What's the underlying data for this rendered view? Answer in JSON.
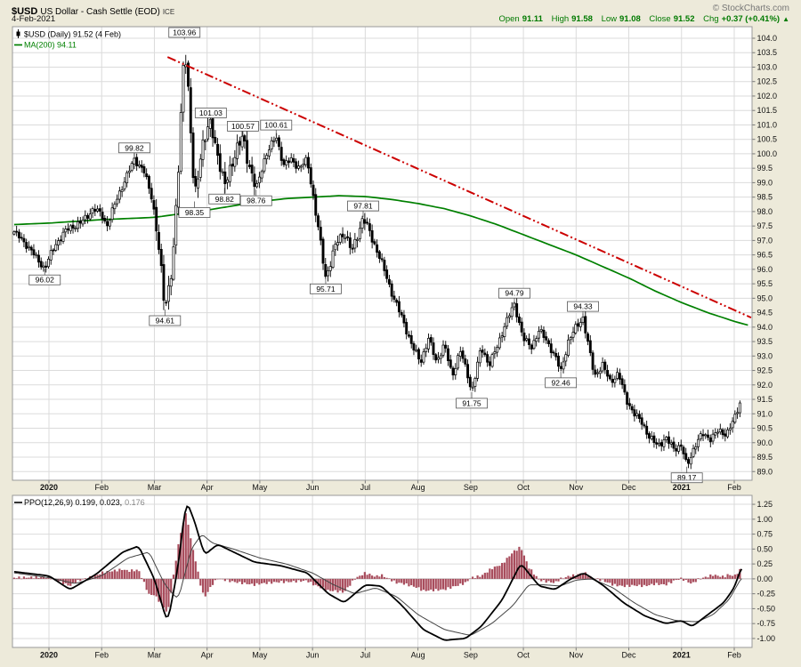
{
  "header": {
    "symbol": "$USD",
    "title": "US Dollar - Cash Settle (EOD)",
    "exchange": "ICE",
    "credit": "© StockCharts.com",
    "date": "4-Feb-2021",
    "quote": {
      "open_label": "Open",
      "open": "91.11",
      "high_label": "High",
      "high": "91.58",
      "low_label": "Low",
      "low": "91.08",
      "close_label": "Close",
      "close": "91.52",
      "chg_label": "Chg",
      "chg": "+0.37 (+0.41%)",
      "direction": "▲"
    },
    "up_color": "#007A00"
  },
  "main_panel": {
    "legend_symbol": "$USD (Daily) 91.52 (4 Feb)",
    "legend_ma": "MA(200) 94.11"
  },
  "ppo_panel": {
    "legend": "PPO(12,26,9) 0.199, 0.023,",
    "legend_hist": "0.176"
  },
  "chart_data": {
    "type": "candlestick",
    "title": "$USD US Dollar - Cash Settle (EOD) ICE",
    "timeframe": "Daily",
    "last_close": 91.52,
    "x_axis": {
      "unit": "months, 0 = Jan 2020 tick",
      "tick_labels": [
        "2020",
        "Feb",
        "Mar",
        "Apr",
        "May",
        "Jun",
        "Jul",
        "Aug",
        "Sep",
        "Oct",
        "Nov",
        "Dec",
        "2021",
        "Feb"
      ],
      "range": [
        -0.66,
        13.34
      ]
    },
    "price_axis": {
      "min": 89.0,
      "max": 104.0,
      "step": 0.5,
      "tick_labels": [
        "104.0",
        "103.5",
        "103.0",
        "102.5",
        "102.0",
        "101.5",
        "101.0",
        "100.5",
        "100.0",
        "99.5",
        "99.0",
        "98.5",
        "98.0",
        "97.5",
        "97.0",
        "96.5",
        "96.0",
        "95.5",
        "95.0",
        "94.5",
        "94.0",
        "93.5",
        "93.0",
        "92.5",
        "92.0",
        "91.5",
        "91.0",
        "90.5",
        "90.0",
        "89.5",
        "89.0"
      ]
    },
    "price_anchors": [
      [
        -0.66,
        97.3
      ],
      [
        -0.4,
        96.8
      ],
      [
        -0.2,
        96.3
      ],
      [
        -0.08,
        96.02
      ],
      [
        0.1,
        96.8
      ],
      [
        0.35,
        97.4
      ],
      [
        0.6,
        97.6
      ],
      [
        0.85,
        98.1
      ],
      [
        1.0,
        97.9
      ],
      [
        1.1,
        97.5
      ],
      [
        1.3,
        98.5
      ],
      [
        1.62,
        99.82
      ],
      [
        1.8,
        99.4
      ],
      [
        1.95,
        98.5
      ],
      [
        2.05,
        97.3
      ],
      [
        2.2,
        94.61
      ],
      [
        2.35,
        96.3
      ],
      [
        2.45,
        99.2
      ],
      [
        2.57,
        103.96
      ],
      [
        2.65,
        102.0
      ],
      [
        2.76,
        98.35
      ],
      [
        2.9,
        100.3
      ],
      [
        3.07,
        101.03
      ],
      [
        3.2,
        100.0
      ],
      [
        3.33,
        98.82
      ],
      [
        3.5,
        99.9
      ],
      [
        3.68,
        100.57
      ],
      [
        3.8,
        99.6
      ],
      [
        3.93,
        98.76
      ],
      [
        4.1,
        99.9
      ],
      [
        4.31,
        100.61
      ],
      [
        4.45,
        99.6
      ],
      [
        4.6,
        99.8
      ],
      [
        4.75,
        99.5
      ],
      [
        4.9,
        99.8
      ],
      [
        5.05,
        98.1
      ],
      [
        5.25,
        95.71
      ],
      [
        5.45,
        96.9
      ],
      [
        5.6,
        97.3
      ],
      [
        5.75,
        96.6
      ],
      [
        5.96,
        97.81
      ],
      [
        6.1,
        97.2
      ],
      [
        6.3,
        96.3
      ],
      [
        6.5,
        95.2
      ],
      [
        6.7,
        94.3
      ],
      [
        6.9,
        93.3
      ],
      [
        7.05,
        92.8
      ],
      [
        7.2,
        93.6
      ],
      [
        7.35,
        92.8
      ],
      [
        7.5,
        93.4
      ],
      [
        7.65,
        92.3
      ],
      [
        7.8,
        93.2
      ],
      [
        7.95,
        92.3
      ],
      [
        8.02,
        91.75
      ],
      [
        8.2,
        93.3
      ],
      [
        8.35,
        92.7
      ],
      [
        8.5,
        93.3
      ],
      [
        8.65,
        94.1
      ],
      [
        8.83,
        94.79
      ],
      [
        9.0,
        93.6
      ],
      [
        9.15,
        93.3
      ],
      [
        9.3,
        93.9
      ],
      [
        9.45,
        93.5
      ],
      [
        9.6,
        93.0
      ],
      [
        9.71,
        92.46
      ],
      [
        9.85,
        93.5
      ],
      [
        10.0,
        94.0
      ],
      [
        10.13,
        94.33
      ],
      [
        10.25,
        93.2
      ],
      [
        10.35,
        92.3
      ],
      [
        10.5,
        92.7
      ],
      [
        10.65,
        92.1
      ],
      [
        10.8,
        92.4
      ],
      [
        10.95,
        91.5
      ],
      [
        11.1,
        91.0
      ],
      [
        11.25,
        90.7
      ],
      [
        11.4,
        90.15
      ],
      [
        11.55,
        89.9
      ],
      [
        11.7,
        90.15
      ],
      [
        11.85,
        89.8
      ],
      [
        12.0,
        89.9
      ],
      [
        12.1,
        89.17
      ],
      [
        12.25,
        89.9
      ],
      [
        12.4,
        90.3
      ],
      [
        12.55,
        90.15
      ],
      [
        12.7,
        90.4
      ],
      [
        12.85,
        90.3
      ],
      [
        13.0,
        90.8
      ],
      [
        13.13,
        91.52
      ]
    ],
    "ma200": {
      "label": "MA(200)",
      "last": 94.11,
      "color": "#008000",
      "anchors": [
        [
          -0.66,
          97.55
        ],
        [
          0,
          97.6
        ],
        [
          1,
          97.72
        ],
        [
          2,
          97.8
        ],
        [
          2.6,
          97.95
        ],
        [
          3,
          98.05
        ],
        [
          3.5,
          98.2
        ],
        [
          4,
          98.35
        ],
        [
          4.5,
          98.45
        ],
        [
          5,
          98.5
        ],
        [
          5.5,
          98.55
        ],
        [
          6,
          98.52
        ],
        [
          6.5,
          98.42
        ],
        [
          7,
          98.28
        ],
        [
          7.5,
          98.1
        ],
        [
          8,
          97.85
        ],
        [
          8.5,
          97.55
        ],
        [
          9,
          97.2
        ],
        [
          9.5,
          96.85
        ],
        [
          10,
          96.5
        ],
        [
          10.5,
          96.1
        ],
        [
          11,
          95.7
        ],
        [
          11.5,
          95.25
        ],
        [
          12,
          94.85
        ],
        [
          12.5,
          94.5
        ],
        [
          13,
          94.2
        ],
        [
          13.3,
          94.05
        ]
      ]
    },
    "trendline": {
      "color": "#CC0000",
      "style": "dash-dot",
      "from": [
        2.25,
        103.35
      ],
      "to": [
        13.32,
        94.33
      ]
    },
    "annotations": [
      {
        "label": "96.02",
        "m": -0.08,
        "price": 96.02,
        "side": "below"
      },
      {
        "label": "99.82",
        "m": 1.62,
        "price": 99.82,
        "side": "above"
      },
      {
        "label": "94.61",
        "m": 2.2,
        "price": 94.61,
        "side": "below"
      },
      {
        "label": "103.96",
        "m": 2.57,
        "price": 103.96,
        "side": "above"
      },
      {
        "label": "98.35",
        "m": 2.76,
        "price": 98.35,
        "side": "below"
      },
      {
        "label": "101.03",
        "m": 3.07,
        "price": 101.03,
        "side": "above"
      },
      {
        "label": "98.82",
        "m": 3.33,
        "price": 98.82,
        "side": "below"
      },
      {
        "label": "100.57",
        "m": 3.68,
        "price": 100.57,
        "side": "above"
      },
      {
        "label": "98.76",
        "m": 3.93,
        "price": 98.76,
        "side": "below"
      },
      {
        "label": "100.61",
        "m": 4.31,
        "price": 100.61,
        "side": "above"
      },
      {
        "label": "95.71",
        "m": 5.25,
        "price": 95.71,
        "side": "below"
      },
      {
        "label": "97.81",
        "m": 5.96,
        "price": 97.81,
        "side": "above"
      },
      {
        "label": "91.75",
        "m": 8.02,
        "price": 91.75,
        "side": "below"
      },
      {
        "label": "94.79",
        "m": 8.83,
        "price": 94.79,
        "side": "above"
      },
      {
        "label": "92.46",
        "m": 9.71,
        "price": 92.46,
        "side": "below"
      },
      {
        "label": "94.33",
        "m": 10.13,
        "price": 94.33,
        "side": "above"
      },
      {
        "label": "89.17",
        "m": 12.1,
        "price": 89.17,
        "side": "below"
      }
    ],
    "ppo": {
      "label": "PPO(12,26,9)",
      "last": {
        "ppo": 0.199,
        "signal": 0.023,
        "hist": 0.176
      },
      "hist_color": "#A84C5C",
      "axis": {
        "min": -1.0,
        "max": 1.25,
        "step": 0.25,
        "tick_labels": [
          "1.25",
          "1.00",
          "0.75",
          "0.50",
          "0.25",
          "0.00",
          "-0.25",
          "-0.50",
          "-0.75",
          "-1.00"
        ]
      },
      "ppo_anchors": [
        [
          -0.66,
          0.12
        ],
        [
          0,
          0.05
        ],
        [
          0.4,
          -0.18
        ],
        [
          0.9,
          0.08
        ],
        [
          1.4,
          0.45
        ],
        [
          1.7,
          0.55
        ],
        [
          2.0,
          0.0
        ],
        [
          2.25,
          -0.75
        ],
        [
          2.45,
          0.2
        ],
        [
          2.6,
          1.32
        ],
        [
          2.75,
          1.0
        ],
        [
          2.95,
          0.4
        ],
        [
          3.2,
          0.58
        ],
        [
          3.5,
          0.45
        ],
        [
          3.9,
          0.28
        ],
        [
          4.4,
          0.22
        ],
        [
          4.9,
          0.1
        ],
        [
          5.3,
          -0.25
        ],
        [
          5.6,
          -0.4
        ],
        [
          6.0,
          -0.1
        ],
        [
          6.3,
          -0.12
        ],
        [
          6.7,
          -0.45
        ],
        [
          7.1,
          -0.85
        ],
        [
          7.5,
          -1.03
        ],
        [
          7.9,
          -1.0
        ],
        [
          8.2,
          -0.8
        ],
        [
          8.6,
          -0.35
        ],
        [
          8.95,
          0.26
        ],
        [
          9.3,
          -0.12
        ],
        [
          9.6,
          -0.18
        ],
        [
          9.9,
          0.0
        ],
        [
          10.15,
          0.1
        ],
        [
          10.5,
          -0.1
        ],
        [
          10.9,
          -0.4
        ],
        [
          11.3,
          -0.62
        ],
        [
          11.7,
          -0.75
        ],
        [
          12.0,
          -0.7
        ],
        [
          12.2,
          -0.8
        ],
        [
          12.5,
          -0.6
        ],
        [
          12.8,
          -0.4
        ],
        [
          13.0,
          -0.15
        ],
        [
          13.14,
          0.199
        ]
      ],
      "signal_anchors": [
        [
          -0.66,
          0.1
        ],
        [
          0,
          0.02
        ],
        [
          0.5,
          -0.08
        ],
        [
          1.0,
          0.05
        ],
        [
          1.5,
          0.35
        ],
        [
          1.9,
          0.45
        ],
        [
          2.2,
          -0.1
        ],
        [
          2.45,
          -0.35
        ],
        [
          2.7,
          0.5
        ],
        [
          2.9,
          0.75
        ],
        [
          3.1,
          0.6
        ],
        [
          3.5,
          0.5
        ],
        [
          4.0,
          0.35
        ],
        [
          4.5,
          0.25
        ],
        [
          5.0,
          0.1
        ],
        [
          5.4,
          -0.1
        ],
        [
          5.8,
          -0.25
        ],
        [
          6.2,
          -0.15
        ],
        [
          6.6,
          -0.3
        ],
        [
          7.0,
          -0.6
        ],
        [
          7.5,
          -0.85
        ],
        [
          8.0,
          -0.95
        ],
        [
          8.4,
          -0.75
        ],
        [
          8.8,
          -0.45
        ],
        [
          9.1,
          -0.1
        ],
        [
          9.4,
          -0.1
        ],
        [
          9.7,
          -0.12
        ],
        [
          10.0,
          -0.02
        ],
        [
          10.3,
          0.0
        ],
        [
          10.7,
          -0.15
        ],
        [
          11.1,
          -0.4
        ],
        [
          11.5,
          -0.6
        ],
        [
          11.9,
          -0.7
        ],
        [
          12.3,
          -0.72
        ],
        [
          12.6,
          -0.6
        ],
        [
          12.9,
          -0.35
        ],
        [
          13.14,
          0.023
        ]
      ]
    }
  }
}
